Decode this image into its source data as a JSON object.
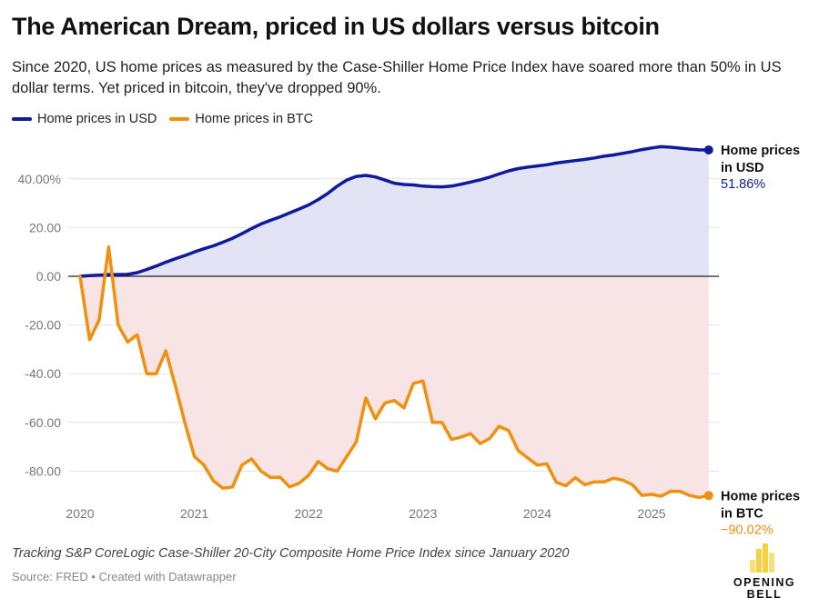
{
  "header": {
    "title": "The American Dream, priced in US dollars versus bitcoin",
    "subtitle": "Since 2020, US home prices as measured by the Case-Shiller Home Price Index have soared more than 50% in US dollar terms. Yet priced in bitcoin, they've dropped 90%."
  },
  "footer": {
    "note": "Tracking S&P CoreLogic Case-Shiller 20-City Composite Home Price Index since January 2020",
    "source": "Source: FRED • Created with Datawrapper",
    "logo_text": "OPENING BELL DAILY"
  },
  "chart_data": {
    "type": "line",
    "title": "The American Dream, priced in US dollars versus bitcoin",
    "x_start": "2020-01",
    "x_frequency": "monthly",
    "x_ticks": [
      "2020",
      "2021",
      "2022",
      "2023",
      "2024",
      "2025"
    ],
    "y_ticks": [
      40,
      20,
      0,
      -20,
      -40,
      -60,
      -80
    ],
    "y_tick_labels": [
      "40.00%",
      "20.00",
      "0.00",
      "-20.00",
      "-40.00",
      "-60.00",
      "-80.00"
    ],
    "ylim": [
      -92,
      56
    ],
    "grid": true,
    "legend": "top-left",
    "series": [
      {
        "name": "Home prices in USD",
        "color": "#0f1a9c",
        "fill": "#e2e4f6",
        "end_label": [
          "Home prices",
          "in USD"
        ],
        "end_value": "51.86%",
        "values": [
          0,
          0.3,
          0.5,
          0.7,
          0.7,
          0.8,
          1.5,
          2.8,
          4.2,
          5.8,
          7.2,
          8.5,
          10,
          11.3,
          12.5,
          14,
          15.6,
          17.5,
          19.6,
          21.5,
          23,
          24.4,
          26,
          27.6,
          29.3,
          31.5,
          34,
          37,
          39.5,
          41,
          41.4,
          40.8,
          39.5,
          38.2,
          37.7,
          37.5,
          37,
          36.8,
          36.7,
          37,
          37.8,
          38.7,
          39.6,
          40.7,
          42,
          43.3,
          44.2,
          44.8,
          45.3,
          45.8,
          46.5,
          47,
          47.5,
          48,
          48.6,
          49.3,
          49.8,
          50.5,
          51.2,
          52,
          52.7,
          53.2,
          53,
          52.6,
          52.2,
          51.9,
          51.86
        ]
      },
      {
        "name": "Home prices in BTC",
        "color": "#f0900f",
        "fill": "#f8e4e4",
        "end_label": [
          "Home prices",
          "in BTC"
        ],
        "end_value": "−90.02%",
        "values": [
          0,
          -26,
          -18,
          12,
          -20,
          -27,
          -24,
          -40,
          -40,
          -30.6,
          -45,
          -60,
          -74,
          -77.5,
          -84,
          -87,
          -86.5,
          -77.5,
          -75,
          -80,
          -82.6,
          -82.5,
          -86.5,
          -85,
          -81.7,
          -76,
          -79,
          -80,
          -74,
          -68,
          -50,
          -58.5,
          -52,
          -51,
          -54,
          -44,
          -43,
          -60,
          -60,
          -67,
          -66,
          -64.6,
          -68.7,
          -66.6,
          -61.6,
          -63.4,
          -71.6,
          -74.6,
          -77.5,
          -77,
          -84.6,
          -86,
          -82.7,
          -85.6,
          -84.4,
          -84.4,
          -82.9,
          -83.7,
          -85.6,
          -90,
          -89.5,
          -90.3,
          -88.3,
          -88.3,
          -90,
          -90.8,
          -90.02
        ]
      }
    ]
  }
}
